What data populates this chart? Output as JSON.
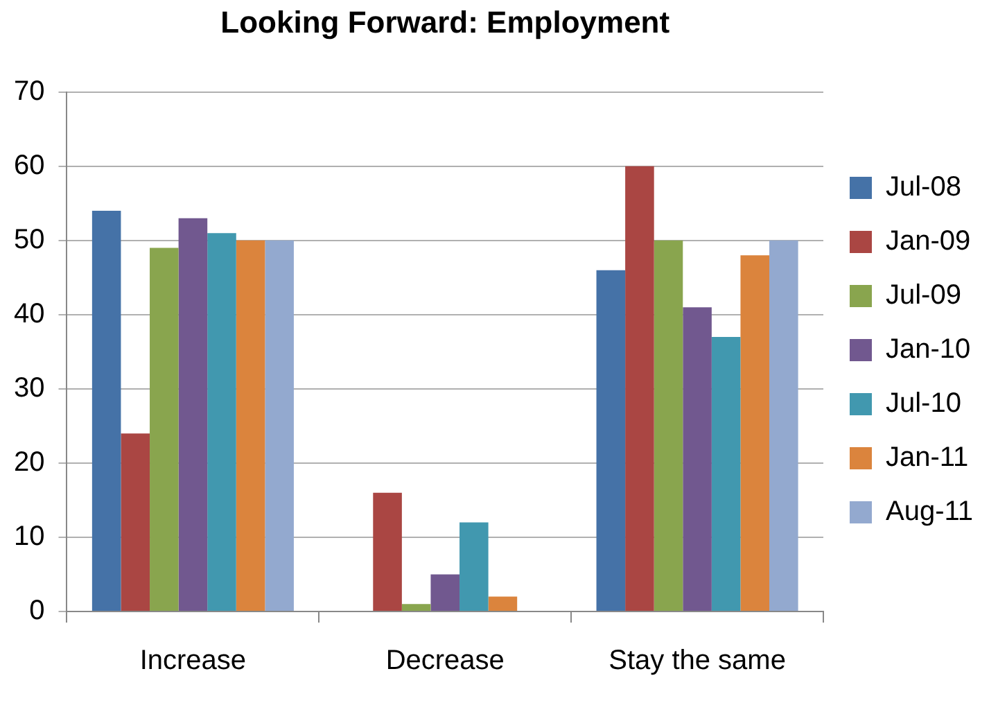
{
  "chart_data": {
    "type": "bar",
    "title": "Looking Forward: Employment",
    "categories": [
      "Increase",
      "Decrease",
      "Stay the same"
    ],
    "series": [
      {
        "name": "Jul-08",
        "color": "#4572a7",
        "values": [
          54,
          0,
          46
        ]
      },
      {
        "name": "Jan-09",
        "color": "#aa4643",
        "values": [
          24,
          16,
          60
        ]
      },
      {
        "name": "Jul-09",
        "color": "#89a54e",
        "values": [
          49,
          1,
          50
        ]
      },
      {
        "name": "Jan-10",
        "color": "#71588f",
        "values": [
          53,
          5,
          41
        ]
      },
      {
        "name": "Jul-10",
        "color": "#4198af",
        "values": [
          51,
          12,
          37
        ]
      },
      {
        "name": "Jan-11",
        "color": "#db843d",
        "values": [
          50,
          2,
          48
        ]
      },
      {
        "name": "Aug-11",
        "color": "#93a9cf",
        "values": [
          50,
          0,
          50
        ]
      }
    ],
    "ylim": [
      0,
      70
    ],
    "yticks": [
      0,
      10,
      20,
      30,
      40,
      50,
      60,
      70
    ],
    "grid": "y",
    "legend": "right"
  }
}
